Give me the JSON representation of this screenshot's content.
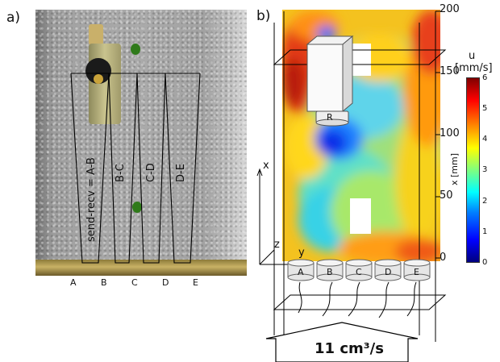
{
  "panel_a": {
    "label": "a)",
    "beams": [
      "send-recv = A-B",
      "B-C",
      "C-D",
      "D-E"
    ],
    "sensors": [
      "A",
      "B",
      "C",
      "D",
      "E"
    ]
  },
  "panel_b": {
    "label": "b)",
    "receiver_label": "R",
    "axes": {
      "x": "x",
      "y": "y",
      "z": "z"
    },
    "transducers": [
      "A",
      "B",
      "C",
      "D",
      "E"
    ],
    "inflow_label": "11 cm³/s",
    "x_axis_title": "x [mm]",
    "x_ticks": [
      "200",
      "150",
      "100",
      "50",
      "0"
    ],
    "colorbar": {
      "title_line1": "u",
      "title_line2": "[mm/s]",
      "ticks": [
        "6",
        "5",
        "4",
        "3",
        "2",
        "1",
        "0"
      ],
      "colors": [
        "#00007f",
        "#0000ff",
        "#007fff",
        "#00ffff",
        "#7fff7f",
        "#ffff00",
        "#ff7f00",
        "#ff0000",
        "#7f0000"
      ]
    }
  }
}
